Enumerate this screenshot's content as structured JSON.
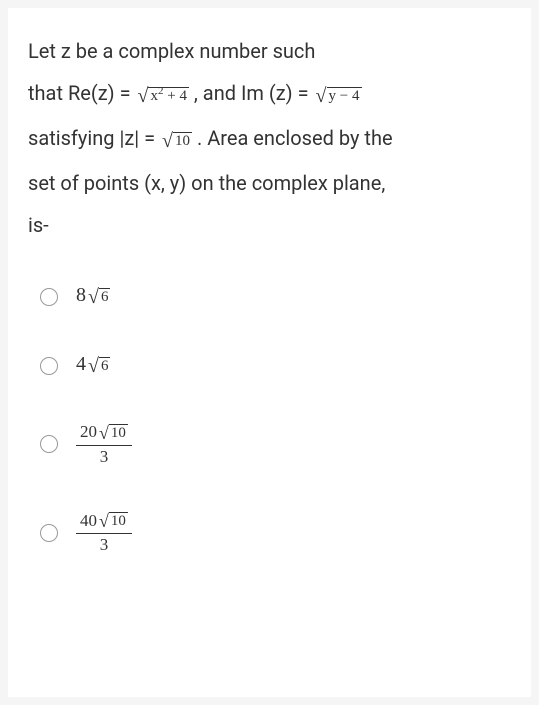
{
  "question": {
    "line1_a": "Let z be a complex number such",
    "line2_a": "that Re(z) = ",
    "line2_sqrt1": "x",
    "line2_sqrt1_suffix": " + 4",
    "line2_b": " , and Im (z) = ",
    "line2_sqrt2": "y − 4",
    "line3_a": "satisfying |z| = ",
    "line3_sqrt": "10",
    "line3_b": " . Area enclosed by the",
    "line4": "set of points (x, y) on the complex plane,",
    "line5": "is-"
  },
  "options": {
    "opt1_coeff": "8",
    "opt1_rad": "6",
    "opt2_coeff": "4",
    "opt2_rad": "6",
    "opt3_num_coeff": "20",
    "opt3_num_rad": "10",
    "opt3_den": "3",
    "opt4_num_coeff": "40",
    "opt4_num_rad": "10",
    "opt4_den": "3"
  }
}
